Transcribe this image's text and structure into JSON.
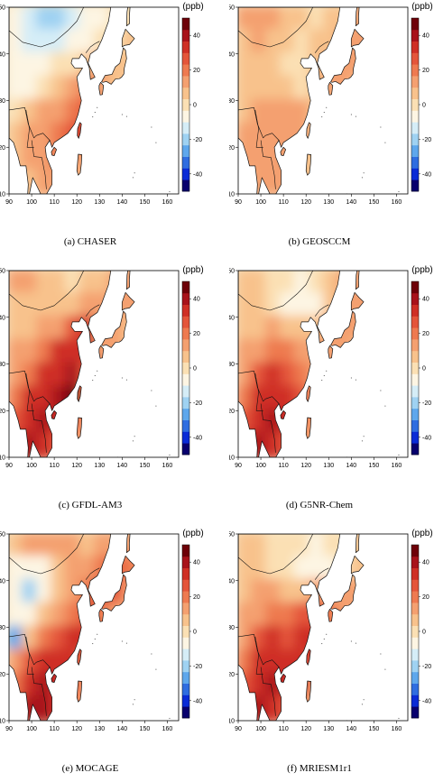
{
  "chart_data": [
    {
      "type": "heatmap",
      "caption": "(a) CHASER",
      "unit": "(ppb)",
      "colorbar_ticks": [
        "40",
        "20",
        "0",
        "-20",
        "-40"
      ],
      "colorbar_range": [
        -50,
        50
      ],
      "x_ticks": [
        "90",
        "100",
        "110",
        "120",
        "130",
        "140",
        "150",
        "160"
      ],
      "y_ticks": [
        "10",
        "20",
        "30",
        "40",
        "50"
      ],
      "xlim": [
        90,
        165
      ],
      "ylim": [
        10,
        50
      ],
      "field": [
        [
          -5,
          -12,
          -18,
          -20,
          -15,
          -10,
          -5,
          -2,
          0,
          0
        ],
        [
          -8,
          -12,
          -15,
          -12,
          -8,
          -5,
          0,
          2,
          5,
          5
        ],
        [
          -10,
          -10,
          -8,
          -3,
          2,
          8,
          10,
          5,
          5,
          5
        ],
        [
          -5,
          -5,
          0,
          5,
          12,
          18,
          12,
          8,
          5,
          5
        ],
        [
          0,
          5,
          10,
          15,
          20,
          25,
          15,
          10,
          8,
          8
        ],
        [
          5,
          10,
          15,
          20,
          25,
          30,
          10,
          5,
          5,
          5
        ],
        [
          5,
          10,
          15,
          20,
          15,
          10,
          5,
          5,
          5,
          5
        ],
        [
          5,
          8,
          12,
          15,
          10,
          5,
          5,
          5,
          5,
          5
        ]
      ]
    },
    {
      "type": "heatmap",
      "caption": "(b) GEOSCCM",
      "unit": "(ppb)",
      "colorbar_ticks": [
        "40",
        "20",
        "0",
        "-20",
        "-40"
      ],
      "colorbar_range": [
        -50,
        50
      ],
      "x_ticks": [
        "90",
        "100",
        "110",
        "120",
        "130",
        "140",
        "150",
        "160"
      ],
      "y_ticks": [
        "10",
        "20",
        "30",
        "40",
        "50"
      ],
      "xlim": [
        90,
        165
      ],
      "ylim": [
        10,
        50
      ],
      "field": [
        [
          10,
          12,
          10,
          8,
          5,
          3,
          5,
          8,
          10,
          10
        ],
        [
          8,
          10,
          8,
          5,
          2,
          5,
          8,
          10,
          12,
          10
        ],
        [
          5,
          5,
          5,
          3,
          0,
          5,
          10,
          12,
          10,
          8
        ],
        [
          5,
          5,
          5,
          5,
          -2,
          8,
          10,
          10,
          8,
          8
        ],
        [
          8,
          10,
          12,
          12,
          10,
          8,
          8,
          5,
          5,
          5
        ],
        [
          10,
          12,
          15,
          12,
          10,
          5,
          5,
          5,
          5,
          5
        ],
        [
          10,
          12,
          15,
          12,
          8,
          5,
          5,
          5,
          5,
          5
        ],
        [
          8,
          10,
          12,
          10,
          8,
          5,
          5,
          5,
          5,
          5
        ]
      ]
    },
    {
      "type": "heatmap",
      "caption": "(c) GFDL-AM3",
      "unit": "(ppb)",
      "colorbar_ticks": [
        "40",
        "20",
        "0",
        "-20",
        "-40"
      ],
      "colorbar_range": [
        -50,
        50
      ],
      "x_ticks": [
        "90",
        "100",
        "110",
        "120",
        "130",
        "140",
        "150",
        "160"
      ],
      "y_ticks": [
        "10",
        "20",
        "30",
        "40",
        "50"
      ],
      "xlim": [
        90,
        165
      ],
      "ylim": [
        10,
        50
      ],
      "field": [
        [
          10,
          10,
          8,
          5,
          3,
          5,
          8,
          10,
          10,
          10
        ],
        [
          5,
          5,
          5,
          5,
          8,
          10,
          12,
          12,
          10,
          10
        ],
        [
          5,
          8,
          10,
          15,
          25,
          30,
          15,
          10,
          8,
          8
        ],
        [
          10,
          15,
          20,
          30,
          35,
          30,
          15,
          10,
          8,
          8
        ],
        [
          15,
          20,
          30,
          35,
          40,
          25,
          12,
          8,
          8,
          8
        ],
        [
          20,
          30,
          35,
          40,
          45,
          20,
          10,
          8,
          8,
          8
        ],
        [
          25,
          35,
          40,
          35,
          25,
          15,
          10,
          8,
          8,
          8
        ],
        [
          30,
          38,
          35,
          25,
          15,
          10,
          8,
          8,
          8,
          8
        ]
      ]
    },
    {
      "type": "heatmap",
      "caption": "(d) G5NR-Chem",
      "unit": "(ppb)",
      "colorbar_ticks": [
        "40",
        "20",
        "0",
        "-20",
        "-40"
      ],
      "colorbar_range": [
        -50,
        50
      ],
      "x_ticks": [
        "90",
        "100",
        "110",
        "120",
        "130",
        "140",
        "150",
        "160"
      ],
      "y_ticks": [
        "10",
        "20",
        "30",
        "40",
        "50"
      ],
      "xlim": [
        90,
        165
      ],
      "ylim": [
        10,
        50
      ],
      "field": [
        [
          8,
          5,
          3,
          0,
          -5,
          -3,
          5,
          10,
          10,
          10
        ],
        [
          5,
          5,
          3,
          -5,
          -8,
          -5,
          5,
          10,
          12,
          10
        ],
        [
          5,
          8,
          10,
          8,
          5,
          5,
          10,
          12,
          10,
          8
        ],
        [
          10,
          15,
          20,
          18,
          15,
          12,
          10,
          10,
          8,
          8
        ],
        [
          15,
          25,
          30,
          25,
          20,
          15,
          10,
          8,
          8,
          8
        ],
        [
          20,
          30,
          35,
          30,
          25,
          15,
          10,
          8,
          8,
          8
        ],
        [
          25,
          35,
          40,
          35,
          20,
          12,
          10,
          8,
          8,
          8
        ],
        [
          30,
          38,
          35,
          25,
          15,
          10,
          8,
          8,
          8,
          8
        ]
      ]
    },
    {
      "type": "heatmap",
      "caption": "(e) MOCAGE",
      "unit": "(ppb)",
      "colorbar_ticks": [
        "40",
        "20",
        "0",
        "-20",
        "-40"
      ],
      "colorbar_range": [
        -50,
        50
      ],
      "x_ticks": [
        "90",
        "100",
        "110",
        "120",
        "130",
        "140",
        "150",
        "160"
      ],
      "y_ticks": [
        "10",
        "20",
        "30",
        "40",
        "50"
      ],
      "xlim": [
        90,
        165
      ],
      "ylim": [
        10,
        50
      ],
      "field": [
        [
          5,
          10,
          15,
          12,
          10,
          8,
          10,
          12,
          15,
          15
        ],
        [
          -5,
          -10,
          -5,
          5,
          10,
          15,
          20,
          25,
          20,
          15
        ],
        [
          -10,
          -20,
          -10,
          5,
          15,
          20,
          30,
          25,
          15,
          10
        ],
        [
          -5,
          -10,
          5,
          15,
          20,
          25,
          20,
          15,
          10,
          10
        ],
        [
          -25,
          5,
          20,
          25,
          30,
          30,
          20,
          12,
          10,
          10
        ],
        [
          10,
          25,
          30,
          35,
          30,
          20,
          12,
          10,
          10,
          10
        ],
        [
          20,
          35,
          40,
          35,
          25,
          15,
          10,
          10,
          10,
          10
        ],
        [
          25,
          40,
          38,
          30,
          20,
          12,
          10,
          10,
          10,
          10
        ]
      ]
    },
    {
      "type": "heatmap",
      "caption": "(f) MRIESM1r1",
      "unit": "(ppb)",
      "colorbar_ticks": [
        "40",
        "20",
        "0",
        "-20",
        "-40"
      ],
      "colorbar_range": [
        -50,
        50
      ],
      "x_ticks": [
        "90",
        "100",
        "110",
        "120",
        "130",
        "140",
        "150",
        "160"
      ],
      "y_ticks": [
        "10",
        "20",
        "30",
        "40",
        "50"
      ],
      "xlim": [
        90,
        165
      ],
      "ylim": [
        10,
        50
      ],
      "field": [
        [
          5,
          5,
          3,
          0,
          -3,
          -5,
          -3,
          0,
          5,
          8
        ],
        [
          5,
          5,
          3,
          0,
          -5,
          -8,
          -5,
          0,
          5,
          8
        ],
        [
          8,
          10,
          10,
          8,
          5,
          10,
          15,
          12,
          10,
          8
        ],
        [
          10,
          15,
          20,
          22,
          25,
          25,
          18,
          12,
          10,
          8
        ],
        [
          15,
          25,
          30,
          25,
          30,
          30,
          20,
          12,
          10,
          8
        ],
        [
          20,
          30,
          35,
          30,
          35,
          25,
          15,
          10,
          8,
          8
        ],
        [
          25,
          35,
          38,
          35,
          30,
          15,
          10,
          8,
          8,
          8
        ],
        [
          30,
          38,
          35,
          25,
          15,
          10,
          8,
          8,
          8,
          8
        ]
      ]
    }
  ],
  "colors": {
    "cbar": [
      "#08006e",
      "#0a2bd6",
      "#2f6de0",
      "#5ea7ec",
      "#9fd2f2",
      "#d5edf7",
      "#fdf5e3",
      "#fbe0b4",
      "#f8c28c",
      "#f4a070",
      "#ee7a50",
      "#e4553a",
      "#cf2f25",
      "#a8121a",
      "#6e0008"
    ],
    "land": "#f6e6c8",
    "coast": "#111111"
  }
}
